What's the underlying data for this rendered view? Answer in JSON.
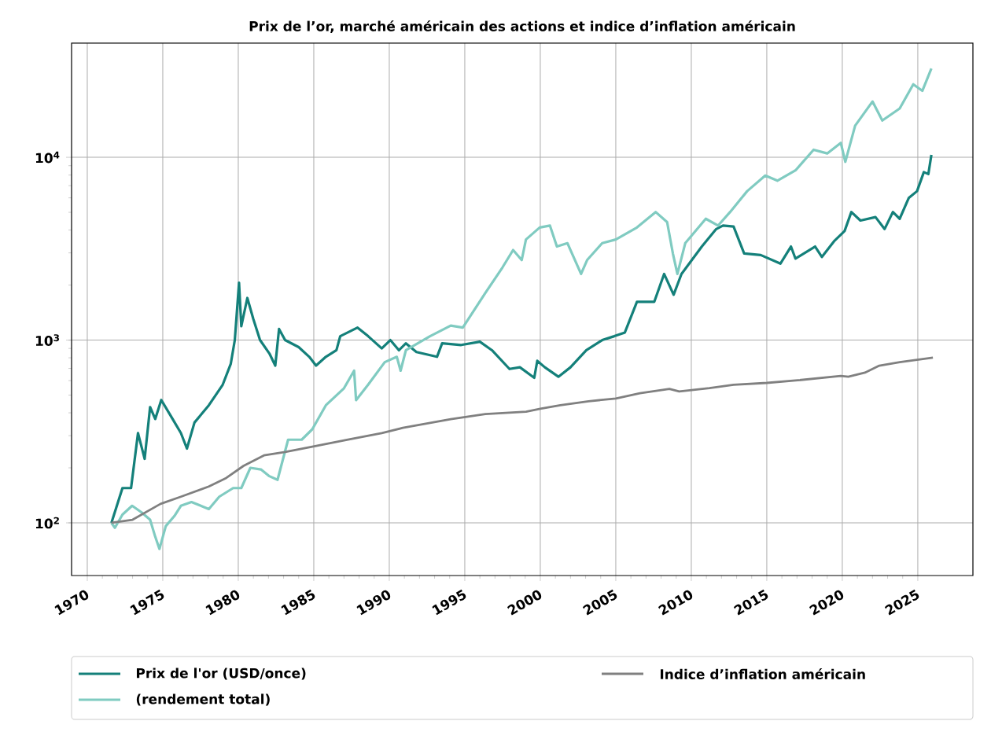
{
  "chart_data": {
    "type": "line",
    "title": "Prix de l’or, marché américain des actions et indice d’inflation américain",
    "xlim": [
      1968.96,
      2028.65
    ],
    "xticks": [
      1970,
      1975,
      1980,
      1985,
      1990,
      1995,
      2000,
      2005,
      2010,
      2015,
      2020,
      2025
    ],
    "ylim": [
      51.5,
      42100
    ],
    "yticks": [
      {
        "value": 100,
        "label": "10$^{2}$"
      },
      {
        "value": 1000,
        "label": "10$^{3}$"
      },
      {
        "value": 10000,
        "label": "10$^{4}$"
      }
    ],
    "log": "y",
    "grid": true,
    "legend": "bottom",
    "series": [
      {
        "name": "Prix de l'or (USD/once)",
        "color": "#14807a",
        "x": [
          1971.6,
          1972.33,
          1972.9,
          1973.36,
          1973.8,
          1974.16,
          1974.5,
          1974.9,
          1975.65,
          1976.2,
          1976.6,
          1977.1,
          1978.05,
          1978.97,
          1979.5,
          1979.77,
          1980.05,
          1980.2,
          1980.6,
          1981.0,
          1981.44,
          1982.06,
          1982.45,
          1982.7,
          1983.1,
          1984.0,
          1984.7,
          1985.15,
          1985.8,
          1986.5,
          1986.75,
          1987.9,
          1988.6,
          1989.5,
          1990.07,
          1990.64,
          1991.1,
          1991.8,
          1993.16,
          1993.5,
          1994.76,
          1996.0,
          1996.8,
          1997.96,
          1998.65,
          1999.6,
          1999.8,
          2000.3,
          2001.2,
          2002.0,
          2003.05,
          2004.1,
          2004.9,
          2005.6,
          2006.4,
          2007.55,
          2008.2,
          2008.83,
          2009.35,
          2010.7,
          2011.65,
          2012.1,
          2012.8,
          2013.5,
          2014.6,
          2015.9,
          2016.6,
          2016.9,
          2018.2,
          2018.65,
          2019.45,
          2020.15,
          2020.6,
          2021.2,
          2022.2,
          2022.8,
          2023.35,
          2023.8,
          2024.4,
          2024.95,
          2025.4,
          2025.7,
          2025.9
        ],
        "values": [
          100,
          155,
          155,
          310,
          224,
          430,
          370,
          470,
          370,
          310,
          255,
          354,
          440,
          570,
          740,
          1000,
          2060,
          1190,
          1700,
          1300,
          1000,
          845,
          725,
          1150,
          1000,
          915,
          810,
          725,
          810,
          880,
          1050,
          1170,
          1050,
          900,
          1000,
          880,
          960,
          860,
          810,
          960,
          940,
          980,
          880,
          695,
          710,
          622,
          770,
          710,
          630,
          710,
          880,
          1000,
          1050,
          1100,
          1620,
          1620,
          2300,
          1770,
          2300,
          3250,
          4050,
          4230,
          4180,
          2980,
          2920,
          2620,
          3250,
          2790,
          3250,
          2850,
          3470,
          3950,
          5020,
          4510,
          4710,
          4050,
          5020,
          4610,
          5990,
          6530,
          8300,
          8100,
          10300
        ]
      },
      {
        "name": "(rendement total)",
        "color": "#80cbc1",
        "x": [
          1971.6,
          1971.83,
          1972.33,
          1972.97,
          1973.6,
          1974.16,
          1974.5,
          1974.78,
          1975.2,
          1975.77,
          1976.2,
          1976.9,
          1978.05,
          1978.74,
          1979.66,
          1980.2,
          1980.8,
          1981.5,
          1982.06,
          1982.6,
          1983.3,
          1984.2,
          1984.9,
          1985.8,
          1987.0,
          1987.67,
          1987.8,
          1988.6,
          1989.7,
          1990.5,
          1990.75,
          1991.1,
          1992.7,
          1994.07,
          1994.87,
          1996.36,
          1997.5,
          1998.2,
          1998.77,
          1999.05,
          1999.96,
          2000.64,
          2001.1,
          2001.8,
          2002.7,
          2003.1,
          2004.1,
          2005.0,
          2006.4,
          2007.64,
          2008.4,
          2008.78,
          2009.08,
          2009.6,
          2010.96,
          2011.77,
          2012.57,
          2013.7,
          2014.9,
          2015.7,
          2016.9,
          2018.1,
          2019.0,
          2019.9,
          2020.2,
          2020.85,
          2022.0,
          2022.65,
          2023.8,
          2024.7,
          2025.3,
          2025.9
        ],
        "values": [
          100,
          94,
          111,
          124,
          114,
          104,
          84,
          72,
          96,
          109,
          124,
          130,
          119,
          139,
          155,
          155,
          200,
          196,
          180,
          172,
          285,
          285,
          325,
          440,
          545,
          680,
          469,
          570,
          757,
          810,
          680,
          880,
          1050,
          1200,
          1170,
          1810,
          2500,
          3110,
          2740,
          3550,
          4130,
          4230,
          3250,
          3390,
          2300,
          2740,
          3390,
          3550,
          4130,
          5020,
          4420,
          2980,
          2300,
          3390,
          4610,
          4230,
          5020,
          6530,
          7950,
          7450,
          8480,
          11000,
          10500,
          12000,
          9450,
          14900,
          20200,
          15900,
          18500,
          25100,
          23100,
          30600
        ]
      },
      {
        "name": "Indice d’inflation américain",
        "color": "#808080",
        "x": [
          1971.6,
          1973.0,
          1974.85,
          1976.2,
          1978.05,
          1979.2,
          1980.35,
          1981.7,
          1983.1,
          1984.9,
          1987.2,
          1989.5,
          1990.9,
          1994.07,
          1996.36,
          1999.06,
          2000.0,
          2001.33,
          2003.2,
          2005.0,
          2006.6,
          2008.55,
          2009.2,
          2011.2,
          2012.8,
          2015.0,
          2016.9,
          2019.9,
          2020.4,
          2021.5,
          2022.45,
          2023.8,
          2026.0
        ],
        "values": [
          100,
          104,
          127,
          139,
          158,
          176,
          205,
          234,
          244,
          261,
          285,
          310,
          331,
          369,
          394,
          406,
          421,
          440,
          463,
          479,
          512,
          541,
          524,
          546,
          570,
          583,
          601,
          636,
          630,
          664,
          725,
          757,
          801
        ]
      }
    ]
  }
}
